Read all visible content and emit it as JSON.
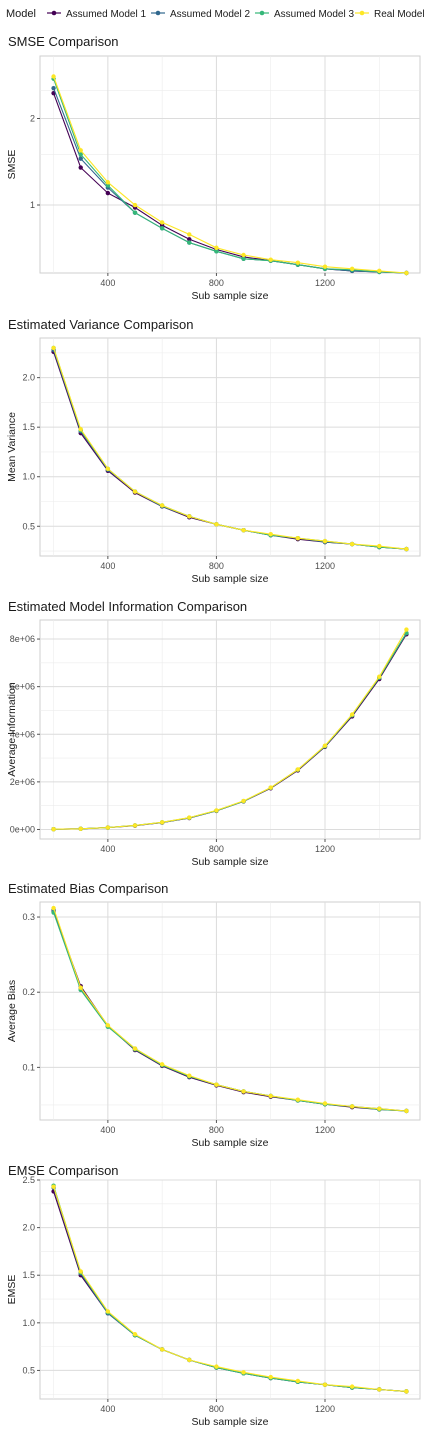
{
  "legend": {
    "title": "Model",
    "items": [
      {
        "label": "Assumed Model 1",
        "color": "#440154"
      },
      {
        "label": "Assumed Model 2",
        "color": "#31688E"
      },
      {
        "label": "Assumed Model 3",
        "color": "#35B779"
      },
      {
        "label": "Real Model",
        "color": "#FDE725"
      }
    ]
  },
  "chart_data": [
    {
      "type": "line",
      "title": "SMSE Comparison",
      "xlabel": "Sub sample size",
      "ylabel": "SMSE",
      "y_scale": "log",
      "grid": true,
      "legend_position": "top",
      "x": [
        200,
        300,
        400,
        500,
        600,
        700,
        800,
        900,
        1000,
        1100,
        1200,
        1300,
        1400,
        1500
      ],
      "xlim": [
        150,
        1550
      ],
      "ylim": [
        0.58,
        3.3
      ],
      "xticks": [
        400,
        800,
        1200
      ],
      "yticks": [
        1,
        2
      ],
      "ytick_labels": [
        "1",
        "2"
      ],
      "series": [
        {
          "name": "Assumed Model 1",
          "values": [
            2.45,
            1.35,
            1.1,
            0.98,
            0.85,
            0.76,
            0.7,
            0.66,
            0.64,
            0.62,
            0.6,
            0.59,
            0.585,
            0.58
          ]
        },
        {
          "name": "Assumed Model 2",
          "values": [
            2.55,
            1.45,
            1.15,
            0.94,
            0.83,
            0.74,
            0.69,
            0.65,
            0.64,
            0.62,
            0.6,
            0.59,
            0.585,
            0.58
          ]
        },
        {
          "name": "Assumed Model 3",
          "values": [
            2.75,
            1.5,
            1.17,
            0.94,
            0.83,
            0.74,
            0.69,
            0.65,
            0.64,
            0.62,
            0.6,
            0.595,
            0.585,
            0.58
          ]
        },
        {
          "name": "Real Model",
          "values": [
            2.8,
            1.55,
            1.2,
            1.0,
            0.87,
            0.79,
            0.71,
            0.67,
            0.645,
            0.63,
            0.61,
            0.6,
            0.59,
            0.58
          ]
        }
      ]
    },
    {
      "type": "line",
      "title": "Estimated Variance Comparison",
      "xlabel": "Sub sample size",
      "ylabel": "Mean Variance",
      "grid": true,
      "x": [
        200,
        300,
        400,
        500,
        600,
        700,
        800,
        900,
        1000,
        1100,
        1200,
        1300,
        1400,
        1500
      ],
      "xlim": [
        150,
        1550
      ],
      "ylim": [
        0.2,
        2.4
      ],
      "xticks": [
        400,
        800,
        1200
      ],
      "yticks": [
        0.5,
        1.0,
        1.5,
        2.0
      ],
      "ytick_labels": [
        "0.5",
        "1.0",
        "1.5",
        "2.0"
      ],
      "series": [
        {
          "name": "Assumed Model 1",
          "values": [
            2.26,
            1.44,
            1.06,
            0.84,
            0.7,
            0.59,
            0.52,
            0.46,
            0.41,
            0.37,
            0.34,
            0.32,
            0.29,
            0.27
          ]
        },
        {
          "name": "Assumed Model 2",
          "values": [
            2.28,
            1.46,
            1.07,
            0.85,
            0.7,
            0.6,
            0.52,
            0.46,
            0.41,
            0.38,
            0.34,
            0.32,
            0.29,
            0.27
          ]
        },
        {
          "name": "Assumed Model 3",
          "values": [
            2.3,
            1.47,
            1.08,
            0.85,
            0.71,
            0.6,
            0.52,
            0.46,
            0.41,
            0.38,
            0.35,
            0.32,
            0.29,
            0.27
          ]
        },
        {
          "name": "Real Model",
          "values": [
            2.3,
            1.48,
            1.08,
            0.85,
            0.71,
            0.6,
            0.52,
            0.46,
            0.42,
            0.38,
            0.35,
            0.32,
            0.3,
            0.27
          ]
        }
      ]
    },
    {
      "type": "line",
      "title": "Estimated Model Information Comparison",
      "xlabel": "Sub sample size",
      "ylabel": "Average Information",
      "grid": true,
      "x": [
        200,
        300,
        400,
        500,
        600,
        700,
        800,
        900,
        1000,
        1100,
        1200,
        1300,
        1400,
        1500
      ],
      "xlim": [
        150,
        1550
      ],
      "ylim": [
        -400000,
        8800000
      ],
      "xticks": [
        400,
        800,
        1200
      ],
      "yticks": [
        0,
        2000000,
        4000000,
        6000000,
        8000000
      ],
      "ytick_labels": [
        "0e+00",
        "2e+06",
        "4e+06",
        "6e+06",
        "8e+06"
      ],
      "series": [
        {
          "name": "Assumed Model 1",
          "values": [
            10000,
            30000,
            80000,
            160000,
            290000,
            480000,
            780000,
            1180000,
            1730000,
            2480000,
            3470000,
            4750000,
            6320000,
            8200000
          ]
        },
        {
          "name": "Assumed Model 2",
          "values": [
            10000,
            30000,
            80000,
            170000,
            290000,
            490000,
            790000,
            1190000,
            1750000,
            2510000,
            3500000,
            4800000,
            6380000,
            8250000
          ]
        },
        {
          "name": "Assumed Model 3",
          "values": [
            10000,
            30000,
            80000,
            170000,
            300000,
            490000,
            790000,
            1190000,
            1750000,
            2510000,
            3500000,
            4800000,
            6380000,
            8250000
          ]
        },
        {
          "name": "Real Model",
          "values": [
            10000,
            30000,
            80000,
            170000,
            300000,
            500000,
            800000,
            1200000,
            1760000,
            2520000,
            3520000,
            4830000,
            6420000,
            8400000
          ]
        }
      ]
    },
    {
      "type": "line",
      "title": "Estimated Bias Comparison",
      "xlabel": "Sub sample size",
      "ylabel": "Average Bias",
      "grid": true,
      "x": [
        200,
        300,
        400,
        500,
        600,
        700,
        800,
        900,
        1000,
        1100,
        1200,
        1300,
        1400,
        1500
      ],
      "xlim": [
        150,
        1550
      ],
      "ylim": [
        0.03,
        0.32
      ],
      "xticks": [
        400,
        800,
        1200
      ],
      "yticks": [
        0.1,
        0.2,
        0.3
      ],
      "ytick_labels": [
        "0.1",
        "0.2",
        "0.3"
      ],
      "series": [
        {
          "name": "Assumed Model 1",
          "values": [
            0.308,
            0.208,
            0.155,
            0.123,
            0.102,
            0.087,
            0.076,
            0.067,
            0.061,
            0.056,
            0.051,
            0.047,
            0.044,
            0.042
          ]
        },
        {
          "name": "Assumed Model 2",
          "values": [
            0.31,
            0.205,
            0.155,
            0.125,
            0.103,
            0.088,
            0.077,
            0.068,
            0.062,
            0.056,
            0.051,
            0.048,
            0.045,
            0.042
          ]
        },
        {
          "name": "Assumed Model 3",
          "values": [
            0.306,
            0.203,
            0.154,
            0.124,
            0.103,
            0.088,
            0.077,
            0.068,
            0.062,
            0.056,
            0.051,
            0.048,
            0.044,
            0.042
          ]
        },
        {
          "name": "Real Model",
          "values": [
            0.312,
            0.206,
            0.156,
            0.125,
            0.104,
            0.089,
            0.077,
            0.068,
            0.062,
            0.057,
            0.052,
            0.048,
            0.045,
            0.042
          ]
        }
      ]
    },
    {
      "type": "line",
      "title": "EMSE Comparison",
      "xlabel": "Sub sample size",
      "ylabel": "EMSE",
      "grid": true,
      "x": [
        200,
        300,
        400,
        500,
        600,
        700,
        800,
        900,
        1000,
        1100,
        1200,
        1300,
        1400,
        1500
      ],
      "xlim": [
        150,
        1550
      ],
      "ylim": [
        0.2,
        2.5
      ],
      "xticks": [
        400,
        800,
        1200
      ],
      "yticks": [
        0.5,
        1.0,
        1.5,
        2.0,
        2.5
      ],
      "ytick_labels": [
        "0.5",
        "1.0",
        "1.5",
        "2.0",
        "2.5"
      ],
      "series": [
        {
          "name": "Assumed Model 1",
          "values": [
            2.38,
            1.5,
            1.1,
            0.87,
            0.72,
            0.61,
            0.53,
            0.47,
            0.42,
            0.38,
            0.35,
            0.32,
            0.3,
            0.28
          ]
        },
        {
          "name": "Assumed Model 2",
          "values": [
            2.42,
            1.52,
            1.1,
            0.87,
            0.72,
            0.61,
            0.53,
            0.47,
            0.42,
            0.38,
            0.35,
            0.32,
            0.3,
            0.28
          ]
        },
        {
          "name": "Assumed Model 3",
          "values": [
            2.44,
            1.53,
            1.11,
            0.87,
            0.72,
            0.61,
            0.53,
            0.47,
            0.42,
            0.38,
            0.35,
            0.32,
            0.3,
            0.28
          ]
        },
        {
          "name": "Real Model",
          "values": [
            2.43,
            1.54,
            1.12,
            0.88,
            0.72,
            0.61,
            0.54,
            0.48,
            0.43,
            0.39,
            0.35,
            0.33,
            0.3,
            0.28
          ]
        }
      ]
    }
  ]
}
